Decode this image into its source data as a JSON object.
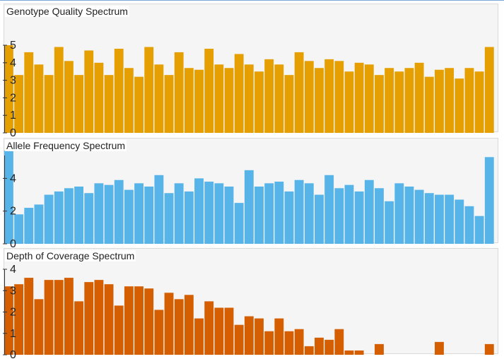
{
  "chart_data": [
    {
      "type": "bar",
      "title": "Genotype Quality Spectrum",
      "color": "#E69F00",
      "ylim": [
        0,
        5
      ],
      "yticks": [
        0,
        1,
        2,
        3,
        4,
        5
      ],
      "values": [
        5.0,
        3.3,
        4.6,
        3.9,
        3.3,
        4.9,
        4.1,
        3.3,
        4.7,
        4.0,
        3.3,
        4.8,
        3.7,
        3.2,
        4.9,
        3.9,
        3.3,
        4.6,
        3.7,
        3.6,
        4.8,
        3.9,
        3.7,
        4.5,
        3.9,
        3.5,
        4.2,
        3.9,
        3.3,
        4.6,
        4.1,
        3.7,
        4.2,
        4.1,
        3.5,
        4.0,
        3.9,
        3.3,
        3.7,
        3.5,
        3.7,
        4.0,
        3.2,
        3.6,
        3.7,
        3.1,
        3.7,
        3.5,
        4.9
      ]
    },
    {
      "type": "bar",
      "title": "Allele Frequency Spectrum",
      "color": "#56B4E9",
      "ylim": [
        0,
        5.4
      ],
      "yticks": [
        0,
        2,
        4
      ],
      "values": [
        5.7,
        1.8,
        2.2,
        2.4,
        3.0,
        3.2,
        3.4,
        3.5,
        3.1,
        3.7,
        3.6,
        3.9,
        3.3,
        3.7,
        3.5,
        4.2,
        3.1,
        3.7,
        3.2,
        4.0,
        3.8,
        3.7,
        3.5,
        2.5,
        4.5,
        3.5,
        3.7,
        3.8,
        3.2,
        3.9,
        3.7,
        3.0,
        4.2,
        3.4,
        3.6,
        3.2,
        3.9,
        3.4,
        2.6,
        3.7,
        3.5,
        3.3,
        3.1,
        3.0,
        3.0,
        2.7,
        2.3,
        1.7,
        5.3
      ]
    },
    {
      "type": "bar",
      "title": "Depth of Coverage Spectrum",
      "color": "#D55E00",
      "ylim": [
        0,
        4
      ],
      "yticks": [
        0,
        1,
        2,
        3,
        4
      ],
      "values": [
        3.2,
        3.3,
        3.6,
        2.6,
        3.5,
        3.5,
        3.6,
        2.5,
        3.4,
        3.5,
        3.3,
        2.3,
        3.2,
        3.2,
        3.1,
        2.1,
        2.9,
        2.6,
        2.8,
        1.7,
        2.5,
        2.2,
        2.2,
        1.4,
        1.8,
        1.7,
        1.1,
        1.7,
        1.1,
        1.2,
        0.4,
        0.8,
        0.7,
        1.2,
        0.2,
        0.2,
        0,
        0.5,
        0,
        0,
        0,
        0,
        0,
        0.6,
        0,
        0,
        0,
        0,
        0.5
      ]
    }
  ]
}
